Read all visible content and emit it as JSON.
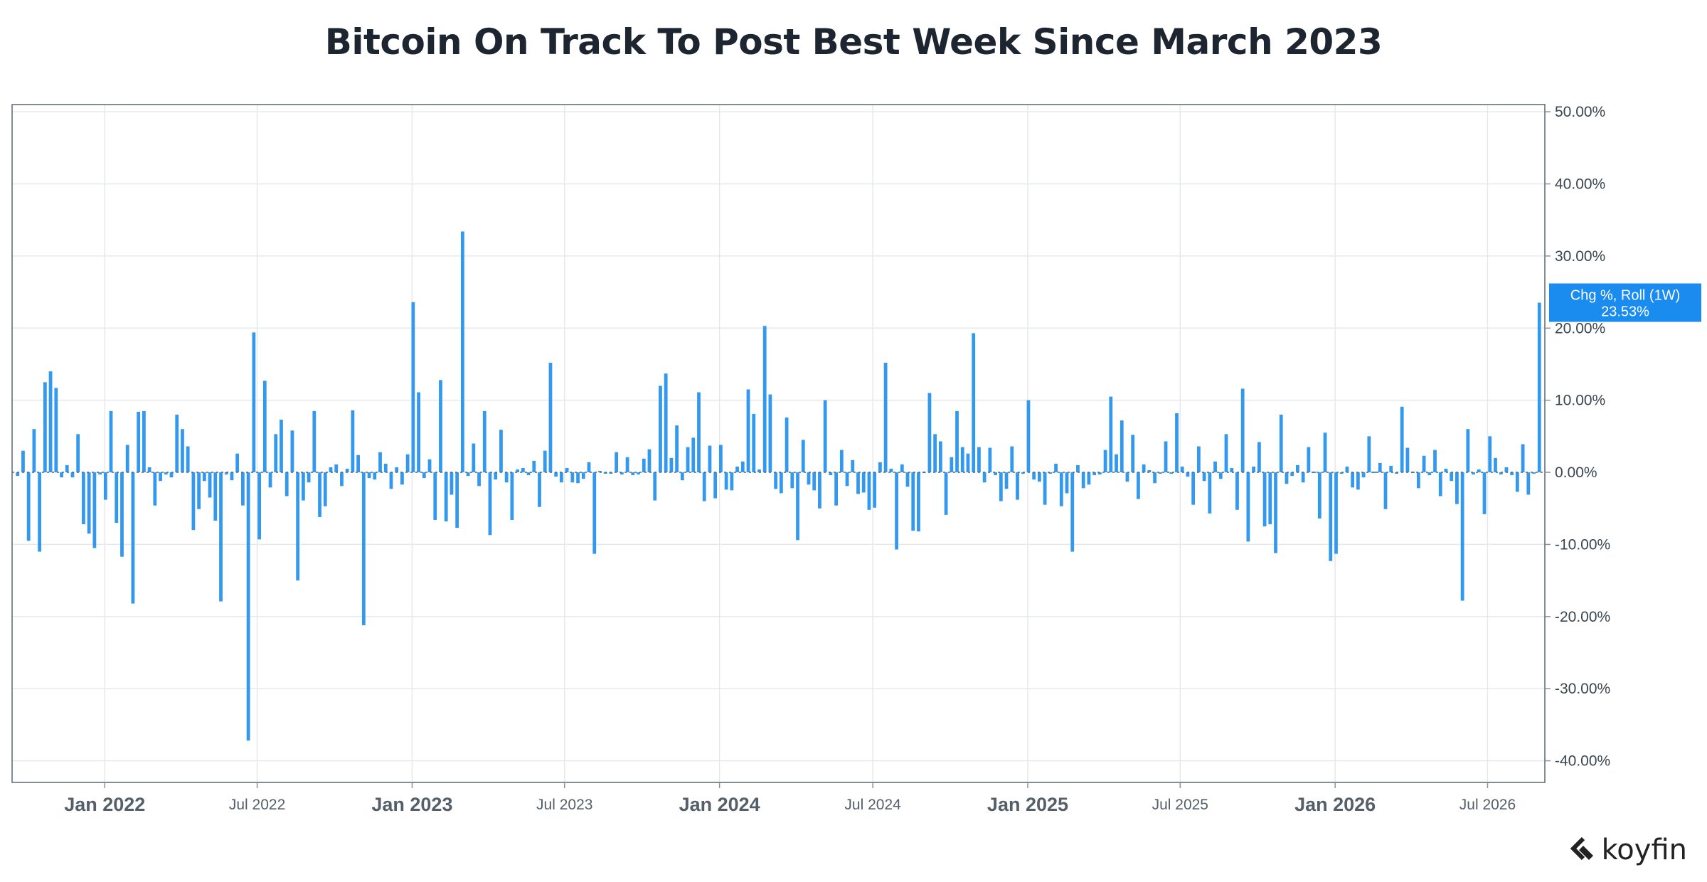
{
  "chart_data": {
    "type": "bar",
    "title": "Bitcoin On Track To Post Best Week Since March 2023",
    "series_name": "Chg %, Roll (1W)",
    "last_value_label": "23.53%",
    "ylim": [
      -43,
      51
    ],
    "yticks": [
      50,
      40,
      30,
      20,
      10,
      0,
      -10,
      -20,
      -30,
      -40
    ],
    "ytick_labels": [
      "50.00%",
      "40.00%",
      "30.00%",
      "20.00%",
      "10.00%",
      "0.00%",
      "-10.00%",
      "-20.00%",
      "-30.00%",
      "-40.00%"
    ],
    "x_start": "2021-09-13",
    "x_end": "2026-09-07",
    "xticks": [
      {
        "date": "2022-01-01",
        "label": "Jan 2022",
        "major": true
      },
      {
        "date": "2022-07-01",
        "label": "Jul 2022",
        "major": false
      },
      {
        "date": "2023-01-01",
        "label": "Jan 2023",
        "major": true
      },
      {
        "date": "2023-07-01",
        "label": "Jul 2023",
        "major": false
      },
      {
        "date": "2024-01-01",
        "label": "Jan 2024",
        "major": true
      },
      {
        "date": "2024-07-01",
        "label": "Jul 2024",
        "major": false
      },
      {
        "date": "2025-01-01",
        "label": "Jan 2025",
        "major": true
      },
      {
        "date": "2025-07-01",
        "label": "Jul 2025",
        "major": false
      },
      {
        "date": "2026-01-01",
        "label": "Jan 2026",
        "major": true
      },
      {
        "date": "2026-07-01",
        "label": "Jul 2026",
        "major": false
      }
    ],
    "grid": true,
    "bar_color": "#3399ee",
    "values": [
      -0.5,
      3,
      -9.5,
      6,
      -11,
      12.5,
      14,
      11.7,
      -0.7,
      1,
      -0.7,
      5.3,
      -7.2,
      -8.5,
      -10.5,
      -0.3,
      -3.8,
      8.5,
      -7,
      -11.7,
      3.8,
      -18.2,
      8.4,
      8.5,
      0.7,
      -4.6,
      -1.2,
      -0.3,
      -0.7,
      8,
      6,
      3.6,
      -8,
      -5.1,
      -1.2,
      -3.5,
      -6.7,
      -17.9,
      -0.3,
      -1.1,
      2.6,
      -4.6,
      -37.2,
      19.4,
      -9.3,
      12.7,
      -2.1,
      5.3,
      7.3,
      -3.3,
      5.8,
      -15,
      -3.9,
      -1.4,
      8.5,
      -6.2,
      -4.7,
      0.7,
      1.1,
      -1.9,
      0.5,
      8.6,
      2.4,
      -21.2,
      -0.8,
      -1,
      2.8,
      1.2,
      -2.3,
      0.7,
      -1.7,
      2.5,
      23.6,
      11.1,
      -0.8,
      1.8,
      -6.6,
      12.8,
      -6.8,
      -3.1,
      -7.7,
      33.4,
      -0.5,
      4,
      -1.9,
      8.5,
      -8.7,
      -1,
      5.9,
      -1.4,
      -6.6,
      0.4,
      0.6,
      -0.4,
      1.6,
      -4.8,
      3,
      15.2,
      -0.6,
      -1.4,
      0.6,
      -1.4,
      -1.5,
      -0.9,
      1.4,
      -11.3,
      0.2,
      -0.2,
      -0.2,
      2.8,
      -0.3,
      2.1,
      -0.4,
      -0.3,
      1.9,
      3.2,
      -3.9,
      12,
      13.7,
      2,
      6.5,
      -1.1,
      3.5,
      4.8,
      11.1,
      -4,
      3.7,
      -3.6,
      3.8,
      -2.4,
      -2.5,
      0.8,
      1.5,
      11.5,
      8.1,
      0.4,
      20.3,
      10.8,
      -2.3,
      -2.9,
      7.6,
      -2.2,
      -9.4,
      4.5,
      -1.7,
      -2.5,
      -5,
      10,
      -0.4,
      -4.6,
      3.1,
      -1.9,
      1.7,
      -3,
      -2.8,
      -5.2,
      -4.9,
      1.4,
      15.2,
      0.5,
      -10.7,
      1.1,
      -2,
      -8.1,
      -8.2,
      -0.1,
      11,
      5.3,
      4.3,
      -5.9,
      2.1,
      8.5,
      3.5,
      2.6,
      19.3,
      3.5,
      -1.4,
      3.4,
      -0.4,
      -4,
      -2.3,
      3.6,
      -3.8,
      -0.2,
      10,
      -1,
      -1.3,
      -4.5,
      -0.2,
      1.2,
      -4.7,
      -2.9,
      -11,
      1,
      -2.2,
      -1.7,
      -0.4,
      -0.3,
      3.1,
      10.5,
      2.5,
      7.2,
      -1.3,
      5.2,
      -3.7,
      1.1,
      0.3,
      -1.5,
      -0.2,
      4.3,
      -0.2,
      8.2,
      0.8,
      -0.6,
      -4.5,
      3.6,
      -1.2,
      -5.7,
      1.5,
      -0.9,
      5.3,
      0.6,
      -5.2,
      11.6,
      -9.6,
      0.8,
      4.2,
      -7.5,
      -7.2,
      -11.2,
      8,
      -1.6,
      -0.5,
      1,
      -1.4,
      3.5,
      -0.1,
      -6.4,
      5.5,
      -12.3,
      -11.3,
      -0.2,
      0.8,
      -2.1,
      -2.4,
      -0.7,
      5,
      -0.1,
      1.3,
      -5.1,
      0.9,
      -0.2,
      9.1,
      3.4,
      -0.1,
      -2.2,
      2.3,
      -0.4,
      3.1,
      -3.3,
      0.5,
      -1.2,
      -4.4,
      -17.8,
      6,
      -0.3,
      0.4,
      -5.8,
      5,
      2,
      -0.3,
      0.7,
      -0.4,
      -2.7,
      3.9,
      -3.1,
      -0.2,
      23.53
    ]
  }
}
